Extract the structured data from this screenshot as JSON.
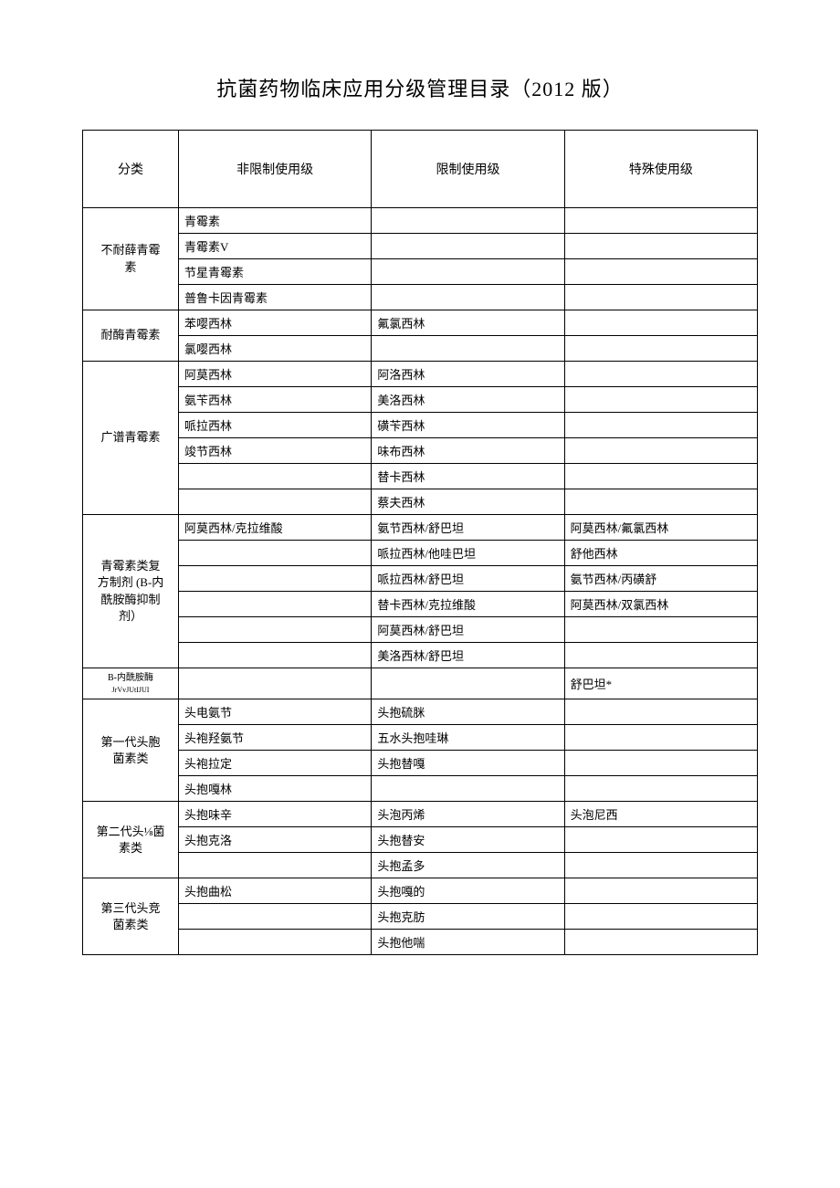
{
  "title": "抗菌药物临床应用分级管理目录（2012 版）",
  "headers": {
    "category": "分类",
    "unrestricted": "非限制使用级",
    "restricted": "限制使用级",
    "special": "特殊使用级"
  },
  "groups": [
    {
      "category": "不耐薛青霉\n素",
      "rows": [
        {
          "c1": "青霉素",
          "c2": "",
          "c3": ""
        },
        {
          "c1": "青霉素V",
          "c2": "",
          "c3": ""
        },
        {
          "c1": "节星青霉素",
          "c2": "",
          "c3": ""
        },
        {
          "c1": "普鲁卡因青霉素",
          "c2": "",
          "c3": ""
        }
      ]
    },
    {
      "category": "耐酶青霉素",
      "rows": [
        {
          "c1": "苯嘤西林",
          "c2": "氟氯西林",
          "c3": ""
        },
        {
          "c1": "氯嘤西林",
          "c2": "",
          "c3": ""
        }
      ]
    },
    {
      "category": "广谱青霉素",
      "rows": [
        {
          "c1": "阿莫西林",
          "c2": "阿洛西林",
          "c3": ""
        },
        {
          "c1": "氨苄西林",
          "c2": "美洛西林",
          "c3": ""
        },
        {
          "c1": "哌拉西林",
          "c2": "磺苄西林",
          "c3": ""
        },
        {
          "c1": "竣节西林",
          "c2": "味布西林",
          "c3": ""
        },
        {
          "c1": "",
          "c2": "替卡西林",
          "c3": ""
        },
        {
          "c1": "",
          "c2": "蔡夫西林",
          "c3": ""
        }
      ]
    },
    {
      "category": "青霉素类复\n方制剂 (B-内\n酰胺酶抑制\n剂）",
      "rows": [
        {
          "c1": "阿莫西林/克拉维酸",
          "c2": "氨节西林/舒巴坦",
          "c3": "阿莫西林/氟氯西林"
        },
        {
          "c1": "",
          "c2": "哌拉西林/他哇巴坦",
          "c3": "舒他西林"
        },
        {
          "c1": "",
          "c2": "哌拉西林/舒巴坦",
          "c3": "氨节西林/丙磺舒"
        },
        {
          "c1": "",
          "c2": "替卡西林/克拉维酸",
          "c3": "阿莫西林/双氯西林"
        },
        {
          "c1": "",
          "c2": "阿莫西林/舒巴坦",
          "c3": ""
        },
        {
          "c1": "",
          "c2": "美洛西林/舒巴坦",
          "c3": ""
        }
      ]
    },
    {
      "category": "B-内酰胺酶",
      "categorySub": "JrVvJUtIJUI",
      "rows": [
        {
          "c1": "",
          "c2": "",
          "c3": "舒巴坦*"
        }
      ]
    },
    {
      "category": "第一代头胞\n菌素类",
      "rows": [
        {
          "c1": "头电氨节",
          "c2": "头抱硫脒",
          "c3": ""
        },
        {
          "c1": "头袍羟氨节",
          "c2": "五水头抱哇琳",
          "c3": ""
        },
        {
          "c1": "头袍拉定",
          "c2": "头抱替嘎",
          "c3": ""
        },
        {
          "c1": "头抱嘎林",
          "c2": "",
          "c3": ""
        }
      ]
    },
    {
      "category": "第二代头⅛菌\n素类",
      "rows": [
        {
          "c1": "头抱味辛",
          "c2": "头泡丙烯",
          "c3": "头泡尼西"
        },
        {
          "c1": "头抱克洛",
          "c2": "头抱替安",
          "c3": ""
        },
        {
          "c1": "",
          "c2": "头抱孟多",
          "c3": ""
        }
      ]
    },
    {
      "category": "第三代头竞\n菌素类",
      "rows": [
        {
          "c1": "头抱曲松",
          "c2": "头抱嘎的",
          "c3": ""
        },
        {
          "c1": "",
          "c2": "头抱克肪",
          "c3": ""
        },
        {
          "c1": "",
          "c2": "头抱他喘",
          "c3": ""
        }
      ]
    }
  ]
}
